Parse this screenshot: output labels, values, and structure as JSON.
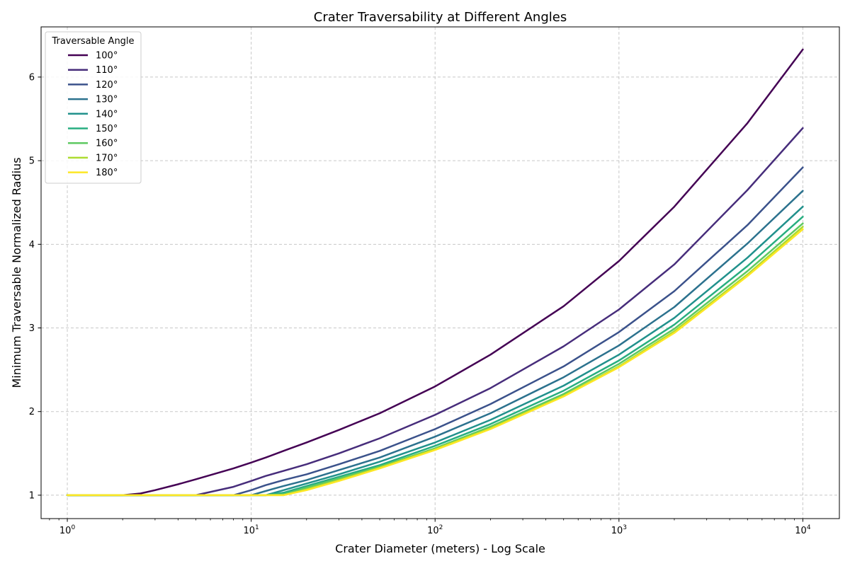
{
  "chart_data": {
    "type": "line",
    "title": "Crater Traversability at Different Angles",
    "xlabel": "Crater Diameter (meters) - Log Scale",
    "ylabel": "Minimum Traversable Normalized Radius",
    "x_scale": "log",
    "xlim": [
      0.72,
      15800
    ],
    "ylim": [
      0.72,
      6.6
    ],
    "x_ticks": [
      {
        "value": 1,
        "base": "10",
        "exp": "0"
      },
      {
        "value": 10,
        "base": "10",
        "exp": "1"
      },
      {
        "value": 100,
        "base": "10",
        "exp": "2"
      },
      {
        "value": 1000,
        "base": "10",
        "exp": "3"
      },
      {
        "value": 10000,
        "base": "10",
        "exp": "4"
      }
    ],
    "y_ticks": [
      1,
      2,
      3,
      4,
      5,
      6
    ],
    "grid": true,
    "legend": {
      "title": "Traversable Angle",
      "placement": "top-left"
    },
    "x": [
      1,
      2,
      2.5,
      3,
      4,
      5,
      8,
      10,
      12,
      15,
      20,
      30,
      50,
      100,
      200,
      500,
      1000,
      2000,
      5000,
      10000
    ],
    "series": [
      {
        "name": "100°",
        "color": "#440154",
        "values": [
          1.0,
          1.0,
          1.02,
          1.06,
          1.13,
          1.19,
          1.32,
          1.39,
          1.45,
          1.53,
          1.63,
          1.78,
          1.98,
          2.3,
          2.68,
          3.26,
          3.8,
          4.45,
          5.45,
          6.33
        ]
      },
      {
        "name": "110°",
        "color": "#472d7b",
        "values": [
          1.0,
          1.0,
          1.0,
          1.0,
          1.0,
          1.0,
          1.1,
          1.17,
          1.23,
          1.29,
          1.37,
          1.5,
          1.68,
          1.96,
          2.28,
          2.78,
          3.22,
          3.76,
          4.65,
          5.39
        ]
      },
      {
        "name": "120°",
        "color": "#3b528b",
        "values": [
          1.0,
          1.0,
          1.0,
          1.0,
          1.0,
          1.0,
          1.0,
          1.06,
          1.12,
          1.18,
          1.25,
          1.37,
          1.53,
          1.79,
          2.09,
          2.54,
          2.95,
          3.44,
          4.23,
          4.92
        ]
      },
      {
        "name": "130°",
        "color": "#2c728e",
        "values": [
          1.0,
          1.0,
          1.0,
          1.0,
          1.0,
          1.0,
          1.0,
          1.0,
          1.05,
          1.11,
          1.18,
          1.3,
          1.45,
          1.7,
          1.98,
          2.41,
          2.79,
          3.25,
          4.01,
          4.64
        ]
      },
      {
        "name": "140°",
        "color": "#21918c",
        "values": [
          1.0,
          1.0,
          1.0,
          1.0,
          1.0,
          1.0,
          1.0,
          1.0,
          1.0,
          1.06,
          1.14,
          1.25,
          1.4,
          1.63,
          1.9,
          2.31,
          2.68,
          3.12,
          3.84,
          4.45
        ]
      },
      {
        "name": "150°",
        "color": "#28ae80",
        "values": [
          1.0,
          1.0,
          1.0,
          1.0,
          1.0,
          1.0,
          1.0,
          1.0,
          1.0,
          1.03,
          1.11,
          1.22,
          1.36,
          1.59,
          1.85,
          2.25,
          2.61,
          3.04,
          3.74,
          4.33
        ]
      },
      {
        "name": "160°",
        "color": "#5ec962",
        "values": [
          1.0,
          1.0,
          1.0,
          1.0,
          1.0,
          1.0,
          1.0,
          1.0,
          1.0,
          1.01,
          1.09,
          1.2,
          1.34,
          1.56,
          1.82,
          2.21,
          2.57,
          2.99,
          3.68,
          4.25
        ]
      },
      {
        "name": "170°",
        "color": "#addc30",
        "values": [
          1.0,
          1.0,
          1.0,
          1.0,
          1.0,
          1.0,
          1.0,
          1.0,
          1.0,
          1.0,
          1.07,
          1.18,
          1.33,
          1.55,
          1.8,
          2.19,
          2.54,
          2.96,
          3.64,
          4.21
        ]
      },
      {
        "name": "180°",
        "color": "#fde725",
        "values": [
          1.0,
          1.0,
          1.0,
          1.0,
          1.0,
          1.0,
          1.0,
          1.0,
          1.0,
          1.0,
          1.06,
          1.17,
          1.32,
          1.54,
          1.79,
          2.18,
          2.53,
          2.94,
          3.62,
          4.18
        ]
      }
    ]
  }
}
